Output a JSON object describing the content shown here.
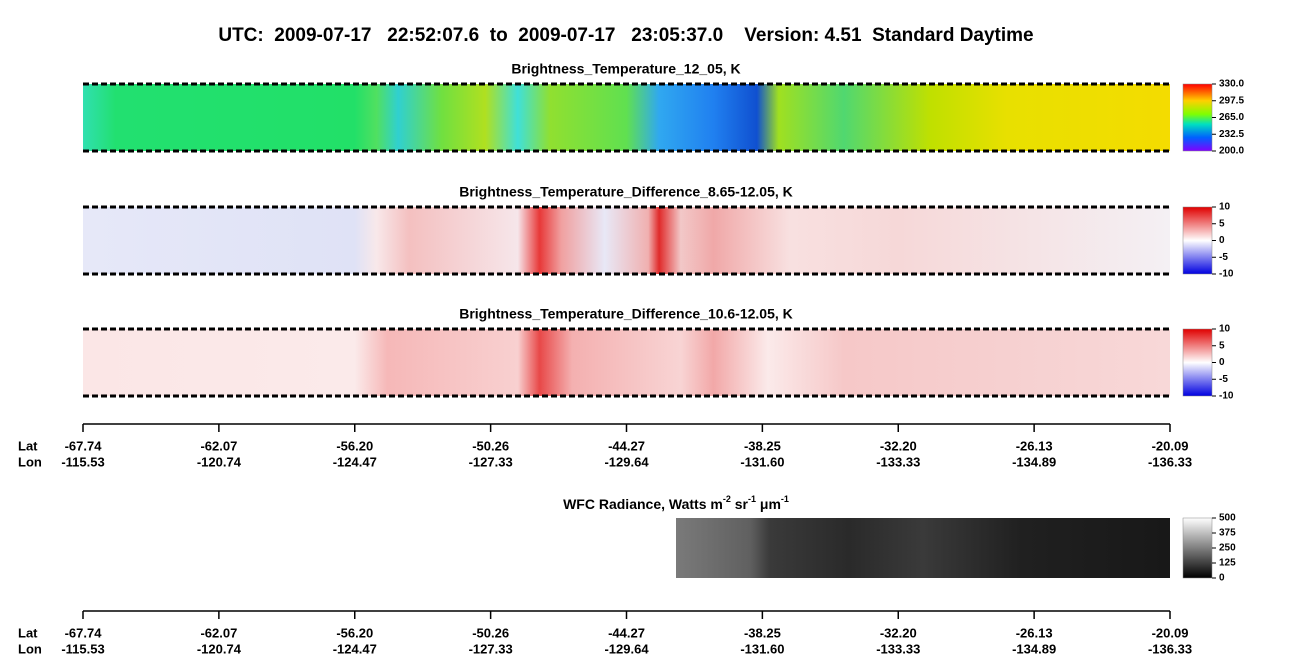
{
  "header": {
    "title": "UTC:  2009-07-17   22:52:07.6  to  2009-07-17   23:05:37.0    Version: 4.51  Standard Daytime"
  },
  "panels": [
    {
      "title": "Brightness_Temperature_12_05, K",
      "colorbar": [
        "330.0",
        "297.5",
        "265.0",
        "232.5",
        "200.0"
      ]
    },
    {
      "title": "Brightness_Temperature_Difference_8.65-12.05, K",
      "colorbar": [
        "10",
        "5",
        "0",
        "-5",
        "-10"
      ]
    },
    {
      "title": "Brightness_Temperature_Difference_10.6-12.05, K",
      "colorbar": [
        "10",
        "5",
        "0",
        "-5",
        "-10"
      ]
    }
  ],
  "radiance": {
    "title": [
      "WFC Radiance, Watts m",
      "-2",
      " sr",
      "-1",
      " μm",
      "-1"
    ],
    "colorbar": [
      "500",
      "375",
      "250",
      "125",
      "0"
    ]
  },
  "axes": [
    {
      "lat_label": "Lat",
      "lon_label": "Lon",
      "lat": [
        "-67.74",
        "-62.07",
        "-56.20",
        "-50.26",
        "-44.27",
        "-38.25",
        "-32.20",
        "-26.13",
        "-20.09"
      ],
      "lon": [
        "-115.53",
        "-120.74",
        "-124.47",
        "-127.33",
        "-129.64",
        "-131.60",
        "-133.33",
        "-134.89",
        "-136.33"
      ]
    },
    {
      "lat_label": "Lat",
      "lon_label": "Lon",
      "lat": [
        "-67.74",
        "-62.07",
        "-56.20",
        "-50.26",
        "-44.27",
        "-38.25",
        "-32.20",
        "-26.13",
        "-20.09"
      ],
      "lon": [
        "-115.53",
        "-120.74",
        "-124.47",
        "-127.33",
        "-129.64",
        "-131.60",
        "-133.33",
        "-134.89",
        "-136.33"
      ]
    }
  ]
}
